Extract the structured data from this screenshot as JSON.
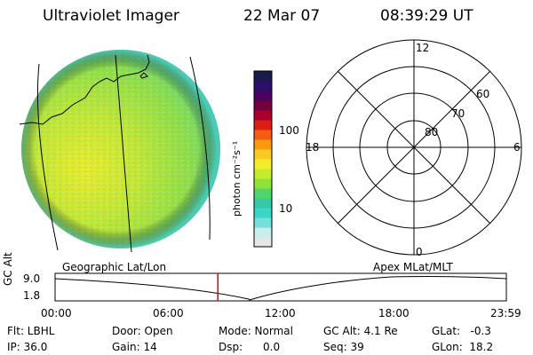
{
  "header": {
    "title": "Ultraviolet Imager",
    "date": "22 Mar 07",
    "time": "08:39:29 UT"
  },
  "colorbar": {
    "unit_label": "photon cm⁻²s⁻¹",
    "ticks": [
      "100",
      "10"
    ],
    "colors": [
      "#e6e6e6",
      "#c9eded",
      "#74dfdc",
      "#3cd6c9",
      "#35c9a5",
      "#52d46c",
      "#8ee23a",
      "#c5ea2e",
      "#f3ec2b",
      "#f7cb1f",
      "#f79a10",
      "#f35d11",
      "#d91e14",
      "#a8002a",
      "#73003e",
      "#4a005c",
      "#2d0e69",
      "#1a1a4d"
    ]
  },
  "polar": {
    "hour_labels": [
      "12",
      "18",
      "6",
      "0"
    ],
    "lat_labels": [
      "60",
      "70",
      "80"
    ]
  },
  "timeline": {
    "left_label": "Geographic Lat/Lon",
    "right_label": "Apex  MLat/MLT",
    "y_axis": "GC Alt",
    "y_ticks": [
      "9.0",
      "1.8"
    ],
    "x_ticks": [
      "00:00",
      "06:00",
      "12:00",
      "18:00",
      "23:59"
    ],
    "current_time": "08:39:29"
  },
  "footer": {
    "flt": "Flt: LBHL",
    "ip": "IP: 36.0",
    "door": "Door: Open",
    "gain": "Gain: 14",
    "mode": "Mode: Normal",
    "dsp": "Dsp:      0.0",
    "gcalt": "GC Alt: 4.1 Re",
    "seq": "Seq: 39",
    "glat": "GLat:   -0.3",
    "glon": "GLon:  18.2"
  }
}
